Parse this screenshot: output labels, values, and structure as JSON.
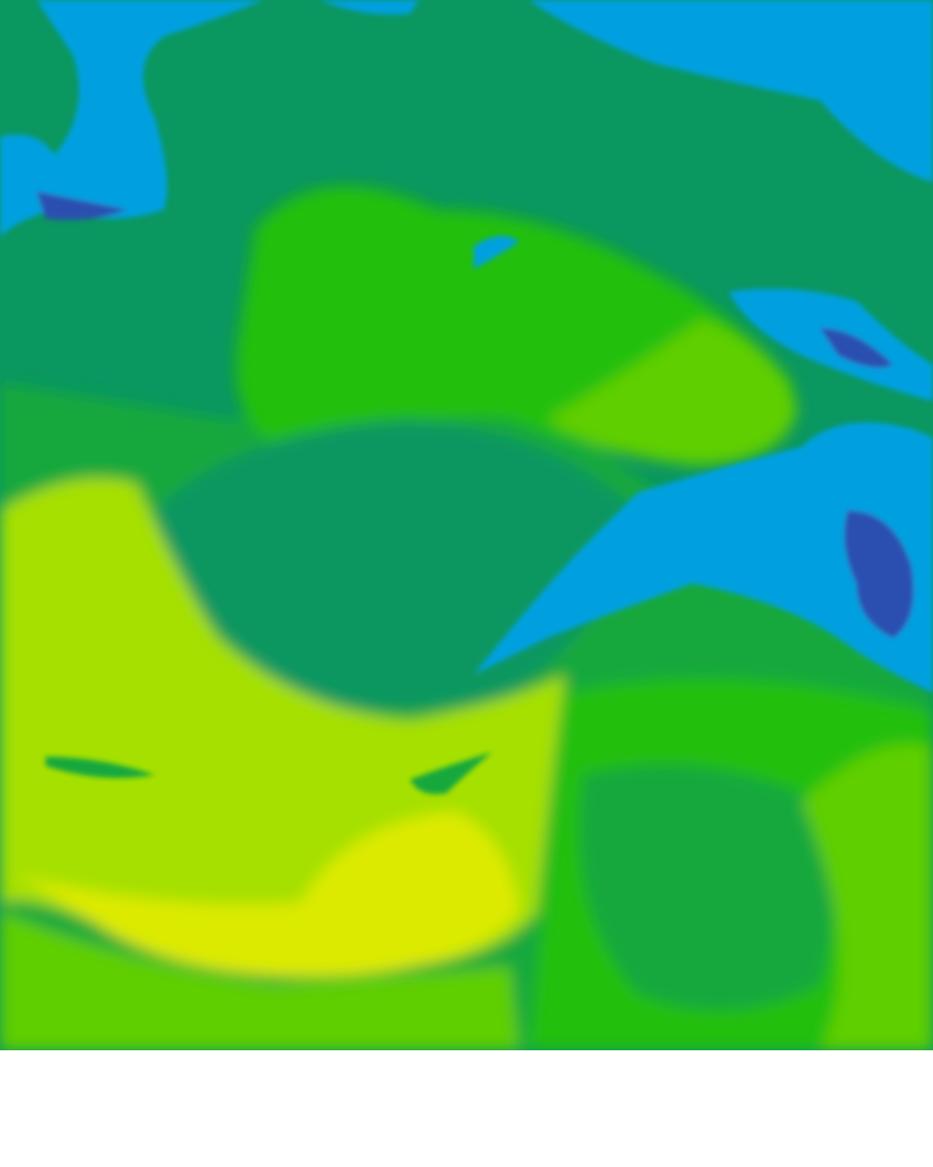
{
  "map": {
    "type": "raster-field",
    "legend": [],
    "palette": {
      "deep_blue": "#2a4fb0",
      "blue": "#00a0e0",
      "teal_green": "#0a9760",
      "dark_green": "#14a83c",
      "green": "#22bf10",
      "lime": "#5ecf00",
      "yellow_green": "#a6e000",
      "yellow": "#dcea00",
      "background": "#ffffff"
    }
  }
}
